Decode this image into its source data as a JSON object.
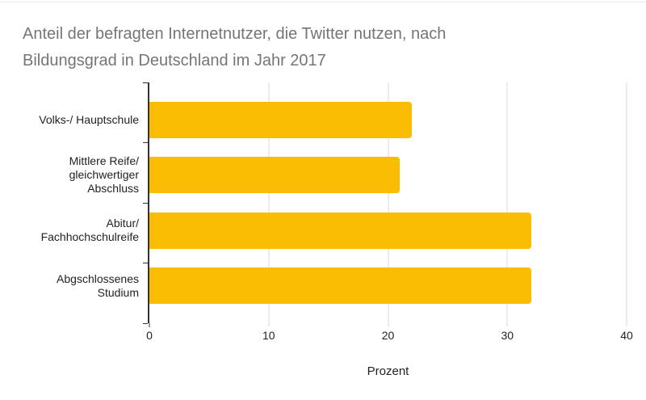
{
  "title_text": "Anteil der befragten Internetnutzer, die Twitter nutzen, nach\nBildungsgrad in Deutschland im Jahr 2017",
  "labels_wrapped": [
    "Volks-/ Hauptschule",
    "Mittlere Reife/\ngleichwertiger\nAbschluss",
    "Abitur/\nFachhochschulreife",
    "Abgschlossenes\nStudium"
  ],
  "chart_data": {
    "type": "bar",
    "orientation": "horizontal",
    "title": "Anteil der befragten Internetnutzer, die Twitter nutzen, nach Bildungsgrad in Deutschland im Jahr 2017",
    "categories": [
      "Volks-/ Hauptschule",
      "Mittlere Reife/ gleichwertiger Abschluss",
      "Abitur/ Fachhochschulreife",
      "Abgschlossenes Studium"
    ],
    "values": [
      22,
      21,
      32,
      32
    ],
    "xlabel": "Prozent",
    "ylabel": "",
    "xticks": [
      0,
      10,
      20,
      30,
      40
    ],
    "xlim": [
      0,
      40
    ],
    "grid": true,
    "legend": "none",
    "bar_color": "#FBBC04"
  },
  "colors": {
    "bar": "#FBBC04",
    "title_text": "#757575",
    "axis_text": "#222222",
    "axis_line": "#333333",
    "gridline": "#d9d9d9"
  }
}
